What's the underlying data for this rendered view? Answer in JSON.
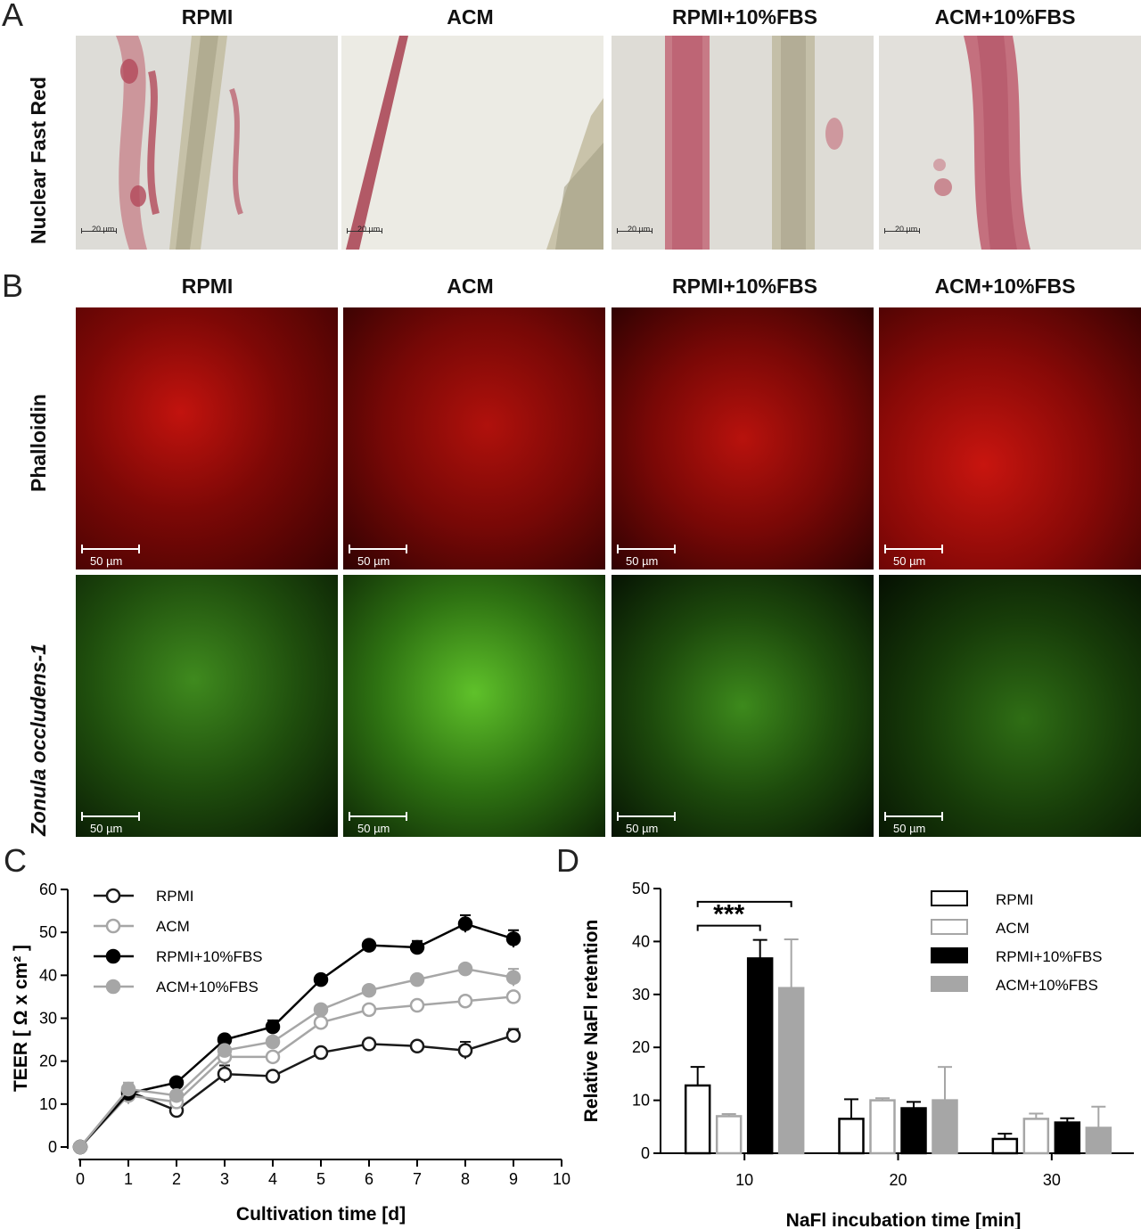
{
  "panel_a": {
    "letter": "A",
    "columns": [
      "RPMI",
      "ACM",
      "RPMI+10%FBS",
      "ACM+10%FBS"
    ],
    "row_label": "Nuclear Fast Red",
    "scale_label": "20 µm"
  },
  "panel_b": {
    "letter": "B",
    "columns": [
      "RPMI",
      "ACM",
      "RPMI+10%FBS",
      "ACM+10%FBS"
    ],
    "row_labels": [
      "Phalloidin",
      "Zonula occludens-1"
    ],
    "scale_label": "50 µm"
  },
  "chart_data": [
    {
      "panel": "C",
      "type": "line",
      "xlabel": "Cultivation time [d]",
      "ylabel": "TEER [ Ω x cm² ]",
      "xlim": [
        0,
        10
      ],
      "ylim": [
        0,
        60
      ],
      "xticks": [
        0,
        1,
        2,
        3,
        4,
        5,
        6,
        7,
        8,
        9,
        10
      ],
      "yticks": [
        0,
        10,
        20,
        30,
        40,
        50,
        60
      ],
      "x": [
        0,
        1,
        2,
        3,
        4,
        5,
        6,
        7,
        8,
        9
      ],
      "legend_position": "top-left",
      "series": [
        {
          "name": "RPMI",
          "color": "#1a1a1a",
          "fill": "open",
          "values": [
            0,
            13,
            8.5,
            17,
            16.5,
            22,
            24,
            23.5,
            22.5,
            26
          ],
          "errors": [
            0.5,
            1.5,
            1,
            2,
            1,
            1,
            1,
            1,
            2,
            1.5
          ]
        },
        {
          "name": "ACM",
          "color": "#a6a6a6",
          "fill": "open",
          "values": [
            0,
            12,
            10.5,
            21,
            21,
            29,
            32,
            33,
            34,
            35
          ],
          "errors": [
            0.5,
            2,
            1.5,
            2,
            1,
            1,
            1,
            1,
            1,
            1
          ]
        },
        {
          "name": "RPMI+10%FBS",
          "color": "#000000",
          "fill": "solid",
          "values": [
            0,
            12.5,
            15,
            25,
            28,
            39,
            47,
            46.5,
            52,
            48.5
          ],
          "errors": [
            0.5,
            1.5,
            1,
            1,
            1.5,
            1,
            1,
            1.5,
            2,
            2
          ]
        },
        {
          "name": "ACM+10%FBS",
          "color": "#a6a6a6",
          "fill": "solid",
          "values": [
            0,
            13.5,
            12,
            22.5,
            24.5,
            32,
            36.5,
            39,
            41.5,
            39.5
          ],
          "errors": [
            0.5,
            1.5,
            1,
            1,
            1,
            1,
            1,
            1,
            1,
            2
          ]
        }
      ]
    },
    {
      "panel": "D",
      "type": "bar",
      "xlabel": "NaFl incubation time [min]",
      "ylabel": "Relative NaFl retention",
      "ylim": [
        0,
        50
      ],
      "yticks": [
        0,
        10,
        20,
        30,
        40,
        50
      ],
      "categories": [
        "10",
        "20",
        "30"
      ],
      "legend_position": "top-right",
      "significance": "***",
      "series": [
        {
          "name": "RPMI",
          "color": "#ffffff",
          "edge": "#000000",
          "values": [
            12.8,
            6.5,
            2.7
          ],
          "errors": [
            3.5,
            3.7,
            1.0
          ]
        },
        {
          "name": "ACM",
          "color": "#ffffff",
          "edge": "#a6a6a6",
          "values": [
            7.0,
            10.0,
            6.5
          ],
          "errors": [
            0.4,
            0.4,
            1.0
          ]
        },
        {
          "name": "RPMI+10%FBS",
          "color": "#000000",
          "edge": "#000000",
          "values": [
            36.8,
            8.5,
            5.8
          ],
          "errors": [
            3.5,
            1.2,
            0.8
          ]
        },
        {
          "name": "ACM+10%FBS",
          "color": "#a6a6a6",
          "edge": "#a6a6a6",
          "values": [
            31.2,
            10.0,
            4.8
          ],
          "errors": [
            9.2,
            6.3,
            4.0
          ]
        }
      ]
    }
  ]
}
